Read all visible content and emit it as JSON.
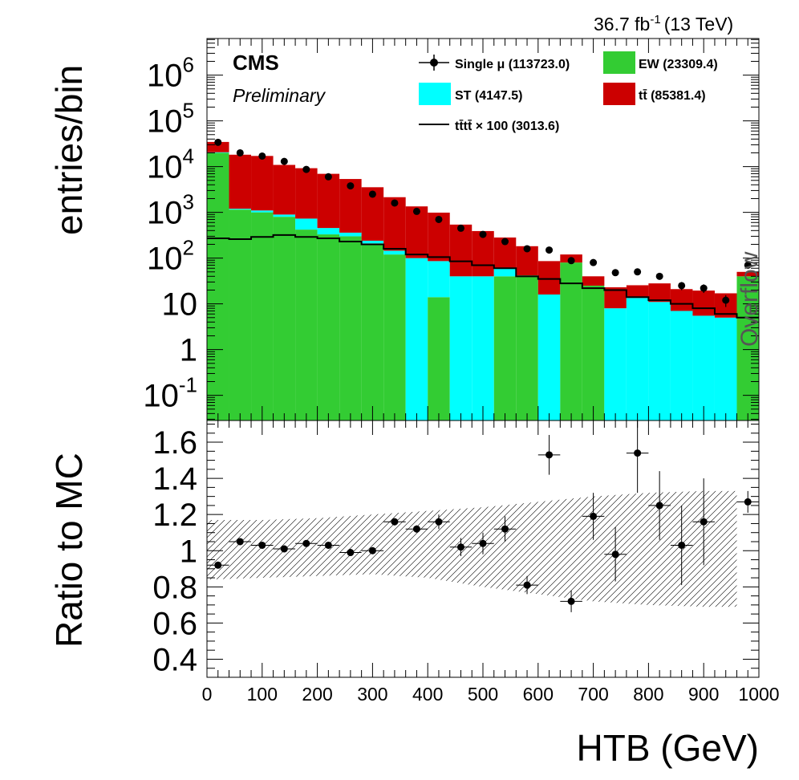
{
  "header": {
    "lumi_value": "36.7 fb",
    "lumi_exp": "-1",
    "energy": "(13 TeV)",
    "cms": "CMS",
    "preliminary": "Preliminary",
    "overflow": "Overflow"
  },
  "legend": {
    "data": "Single  μ (113723.0)",
    "ew": "EW (23309.4)",
    "st": "ST (4147.5)",
    "ttbar": "t̄t (85381.4)",
    "ttbar_label": "tt̄ (85381.4)",
    "tttt": "tt̄tt̄ × 100 (3013.6)"
  },
  "colors": {
    "ew": "#33cc33",
    "st": "#00ffff",
    "ttbar": "#cc0000",
    "tttt": "#000000",
    "data": "#000000"
  },
  "chart_data": [
    {
      "type": "bar",
      "stacked": true,
      "log_y": true,
      "ylabel": "entries/bin",
      "ylim": [
        0.03,
        5000000
      ],
      "xlim": [
        0,
        1000
      ],
      "bin_edges": [
        0,
        40,
        80,
        120,
        160,
        200,
        240,
        280,
        320,
        360,
        400,
        440,
        480,
        520,
        560,
        600,
        640,
        680,
        720,
        760,
        800,
        840,
        880,
        920,
        960,
        1000
      ],
      "series": [
        {
          "name": "EW",
          "values": [
            20000,
            1150,
            1000,
            800,
            420,
            330,
            300,
            210,
            120,
            0,
            14,
            0,
            0,
            40,
            42,
            0,
            80,
            25,
            0,
            0,
            0,
            0,
            0,
            0,
            40,
            0
          ]
        },
        {
          "name": "ST",
          "values": [
            600,
            50,
            100,
            95,
            310,
            125,
            60,
            30,
            25,
            100,
            72,
            40,
            40,
            22,
            0,
            16,
            0,
            0,
            8,
            13.5,
            11,
            7,
            5.5,
            5,
            0,
            40
          ]
        },
        {
          "name": "tt̄",
          "values": [
            14000,
            17000,
            16000,
            10000,
            8500,
            6500,
            5000,
            3300,
            2000,
            1250,
            900,
            500,
            350,
            220,
            140,
            70,
            40,
            15,
            15,
            12,
            17,
            14,
            14,
            12,
            10,
            12
          ]
        },
        {
          "name": "tt̄tt̄ × 100",
          "values": [
            270,
            260,
            290,
            320,
            290,
            270,
            230,
            200,
            160,
            120,
            105,
            85,
            70,
            60,
            40,
            35,
            28,
            22,
            20,
            14,
            12,
            10,
            8,
            6,
            5,
            5
          ]
        }
      ],
      "data_points": {
        "name": "Single  μ",
        "x": [
          20,
          60,
          100,
          140,
          180,
          220,
          260,
          300,
          340,
          380,
          420,
          460,
          500,
          540,
          580,
          620,
          660,
          700,
          740,
          780,
          820,
          860,
          900,
          940,
          980
        ],
        "y": [
          34000,
          20000,
          17000,
          13000,
          8700,
          6000,
          3800,
          2500,
          1600,
          1050,
          700,
          450,
          330,
          230,
          160,
          150,
          88,
          80,
          48,
          50,
          40,
          25,
          22,
          12,
          70
        ]
      },
      "xticks": [
        0,
        100,
        200,
        300,
        400,
        500,
        600,
        700,
        800,
        900,
        1000
      ]
    },
    {
      "type": "scatter",
      "ylabel": "Ratio to MC",
      "xlabel": "HTB (GeV)",
      "ylim": [
        0.3,
        1.72
      ],
      "xlim": [
        0,
        1000
      ],
      "yticks": [
        0.4,
        0.6,
        0.8,
        1,
        1.2,
        1.4,
        1.6
      ],
      "ratio_points": {
        "x": [
          20,
          60,
          100,
          140,
          180,
          220,
          260,
          300,
          340,
          380,
          420,
          460,
          500,
          540,
          580,
          620,
          660,
          700,
          740,
          780,
          820,
          860,
          900,
          980
        ],
        "y": [
          0.92,
          1.05,
          1.03,
          1.01,
          1.04,
          1.03,
          0.99,
          1.0,
          1.16,
          1.12,
          1.16,
          1.02,
          1.04,
          1.12,
          0.81,
          1.53,
          0.72,
          1.19,
          0.98,
          1.54,
          1.25,
          1.03,
          1.16,
          1.27
        ],
        "yerr": [
          0.01,
          0.01,
          0.01,
          0.01,
          0.01,
          0.01,
          0.01,
          0.01,
          0.02,
          0.02,
          0.04,
          0.05,
          0.06,
          0.07,
          0.05,
          0.11,
          0.06,
          0.13,
          0.15,
          0.22,
          0.19,
          0.22,
          0.24,
          0.06
        ]
      },
      "uncertainty_band": {
        "x": [
          0,
          100,
          200,
          300,
          400,
          500,
          600,
          700,
          800,
          900,
          960
        ],
        "lower": [
          0.84,
          0.85,
          0.86,
          0.87,
          0.85,
          0.8,
          0.76,
          0.72,
          0.7,
          0.69,
          0.69
        ],
        "upper": [
          1.17,
          1.17,
          1.18,
          1.2,
          1.22,
          1.24,
          1.27,
          1.3,
          1.32,
          1.33,
          1.33
        ]
      }
    }
  ]
}
